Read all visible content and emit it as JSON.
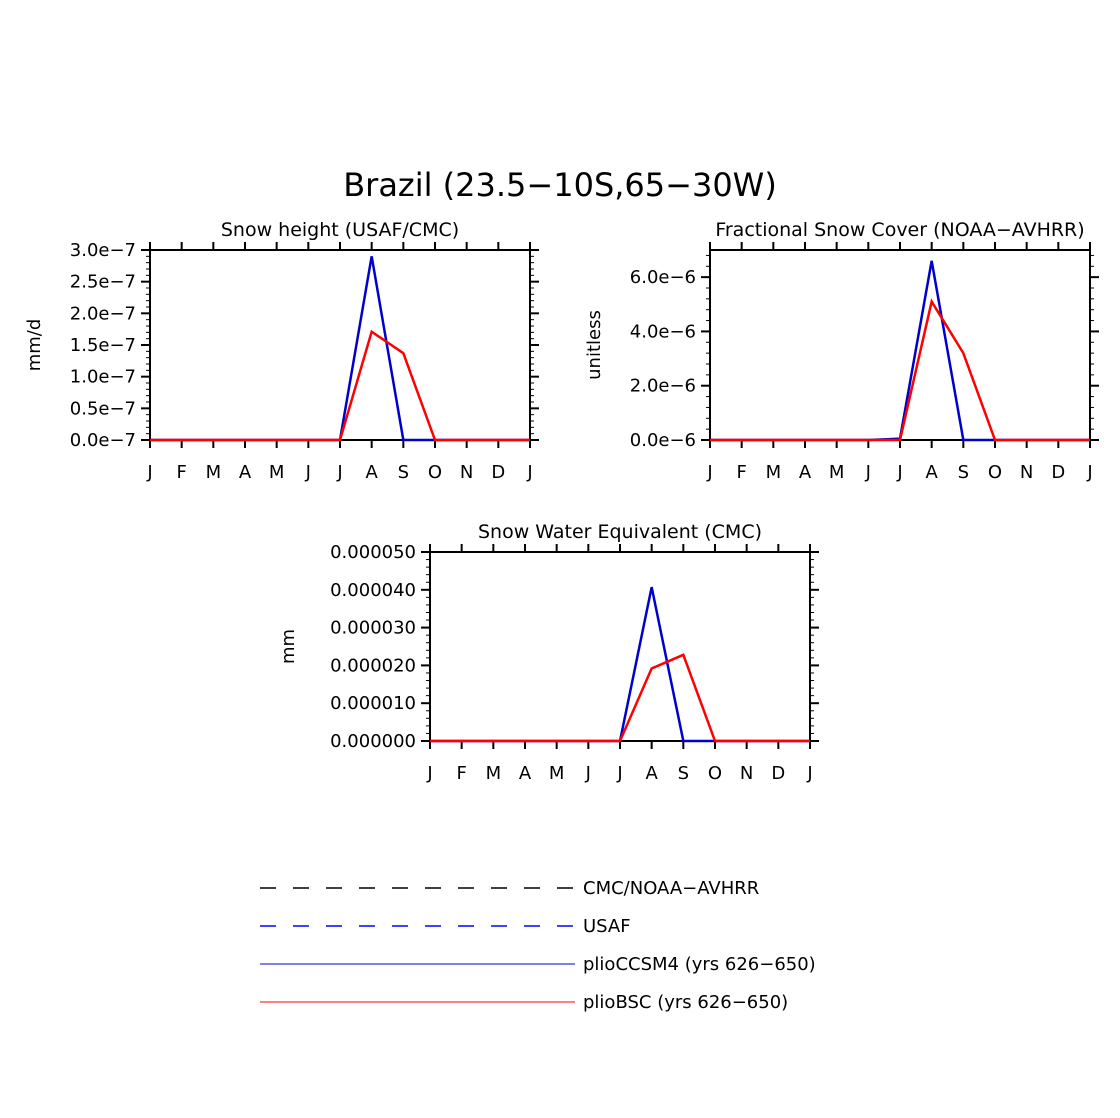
{
  "figure": {
    "title": "Brazil (23.5−10S,65−30W)"
  },
  "months": [
    "J",
    "F",
    "M",
    "A",
    "M",
    "J",
    "J",
    "A",
    "S",
    "O",
    "N",
    "D",
    "J"
  ],
  "colors": {
    "obs": "#000000",
    "usaf": "#0000ff",
    "ccsm4": "#0000cc",
    "bsc": "#ff0000"
  },
  "chart_data": [
    {
      "type": "line",
      "title": "Snow height (USAF/CMC)",
      "ylabel": "mm/d",
      "ylim": [
        0,
        3e-07
      ],
      "yticks": [
        0,
        5e-08,
        1e-07,
        1.5e-07,
        2e-07,
        2.5e-07,
        3e-07
      ],
      "ytick_labels": [
        "0.0e−7",
        "0.5e−7",
        "1.0e−7",
        "1.5e−7",
        "2.0e−7",
        "2.5e−7",
        "3.0e−7"
      ],
      "series": [
        {
          "name": "CMC/NOAA-AVHRR",
          "style": "dashed",
          "values": [
            0,
            0,
            0,
            0,
            0,
            0,
            0,
            0,
            0,
            0,
            0,
            0,
            0
          ]
        },
        {
          "name": "plioCCSM4 (yrs 626−650)",
          "style": "solid",
          "values": [
            0,
            0,
            0,
            0,
            0,
            0,
            0,
            2.9e-07,
            0,
            0,
            0,
            0,
            0
          ]
        },
        {
          "name": "plioBSC (yrs 626−650)",
          "style": "solid",
          "values": [
            0,
            0,
            0,
            0,
            0,
            0,
            0,
            1.71e-07,
            1.37e-07,
            0,
            0,
            0,
            0
          ]
        }
      ]
    },
    {
      "type": "line",
      "title": "Fractional Snow Cover (NOAA−AVHRR)",
      "ylabel": "unitless",
      "ylim": [
        0,
        7e-06
      ],
      "yticks": [
        0,
        2e-06,
        4e-06,
        6e-06
      ],
      "ytick_labels": [
        "0.0e−6",
        "2.0e−6",
        "4.0e−6",
        "6.0e−6"
      ],
      "series": [
        {
          "name": "CMC/NOAA-AVHRR",
          "style": "dashed",
          "values": [
            0,
            0,
            0,
            0,
            0,
            0,
            0,
            0,
            0,
            0,
            0,
            0,
            0
          ]
        },
        {
          "name": "plioCCSM4 (yrs 626−650)",
          "style": "solid",
          "values": [
            0,
            0,
            0,
            0,
            0,
            0,
            5e-08,
            6.6e-06,
            0,
            0,
            0,
            0,
            0
          ]
        },
        {
          "name": "plioBSC (yrs 626−650)",
          "style": "solid",
          "values": [
            0,
            0,
            0,
            0,
            0,
            0,
            0,
            5.1e-06,
            3.2e-06,
            0,
            0,
            0,
            0
          ]
        }
      ]
    },
    {
      "type": "line",
      "title": "Snow Water Equivalent (CMC)",
      "ylabel": "mm",
      "ylim": [
        0,
        5e-05
      ],
      "yticks": [
        0,
        1e-05,
        2e-05,
        3e-05,
        4e-05,
        5e-05
      ],
      "ytick_labels": [
        "0.000000",
        "0.000010",
        "0.000020",
        "0.000030",
        "0.000040",
        "0.000050"
      ],
      "series": [
        {
          "name": "CMC/NOAA-AVHRR",
          "style": "dashed",
          "values": [
            0,
            0,
            0,
            0,
            0,
            0,
            0,
            0,
            0,
            0,
            0,
            0,
            0
          ]
        },
        {
          "name": "plioCCSM4 (yrs 626−650)",
          "style": "solid",
          "values": [
            0,
            0,
            0,
            0,
            0,
            0,
            0,
            4.07e-05,
            0,
            0,
            0,
            0,
            0
          ]
        },
        {
          "name": "plioBSC (yrs 626−650)",
          "style": "solid",
          "values": [
            0,
            0,
            0,
            0,
            0,
            0,
            0,
            1.92e-05,
            2.28e-05,
            0,
            0,
            0,
            0
          ]
        }
      ]
    }
  ],
  "legend": [
    {
      "label": "CMC/NOAA−AVHRR",
      "color": "#000000",
      "style": "dashed"
    },
    {
      "label": "USAF",
      "color": "#0000ff",
      "style": "dashed"
    },
    {
      "label": "plioCCSM4 (yrs 626−650)",
      "color": "#0000cc",
      "style": "solid"
    },
    {
      "label": "plioBSC (yrs 626−650)",
      "color": "#ff0000",
      "style": "solid"
    }
  ]
}
